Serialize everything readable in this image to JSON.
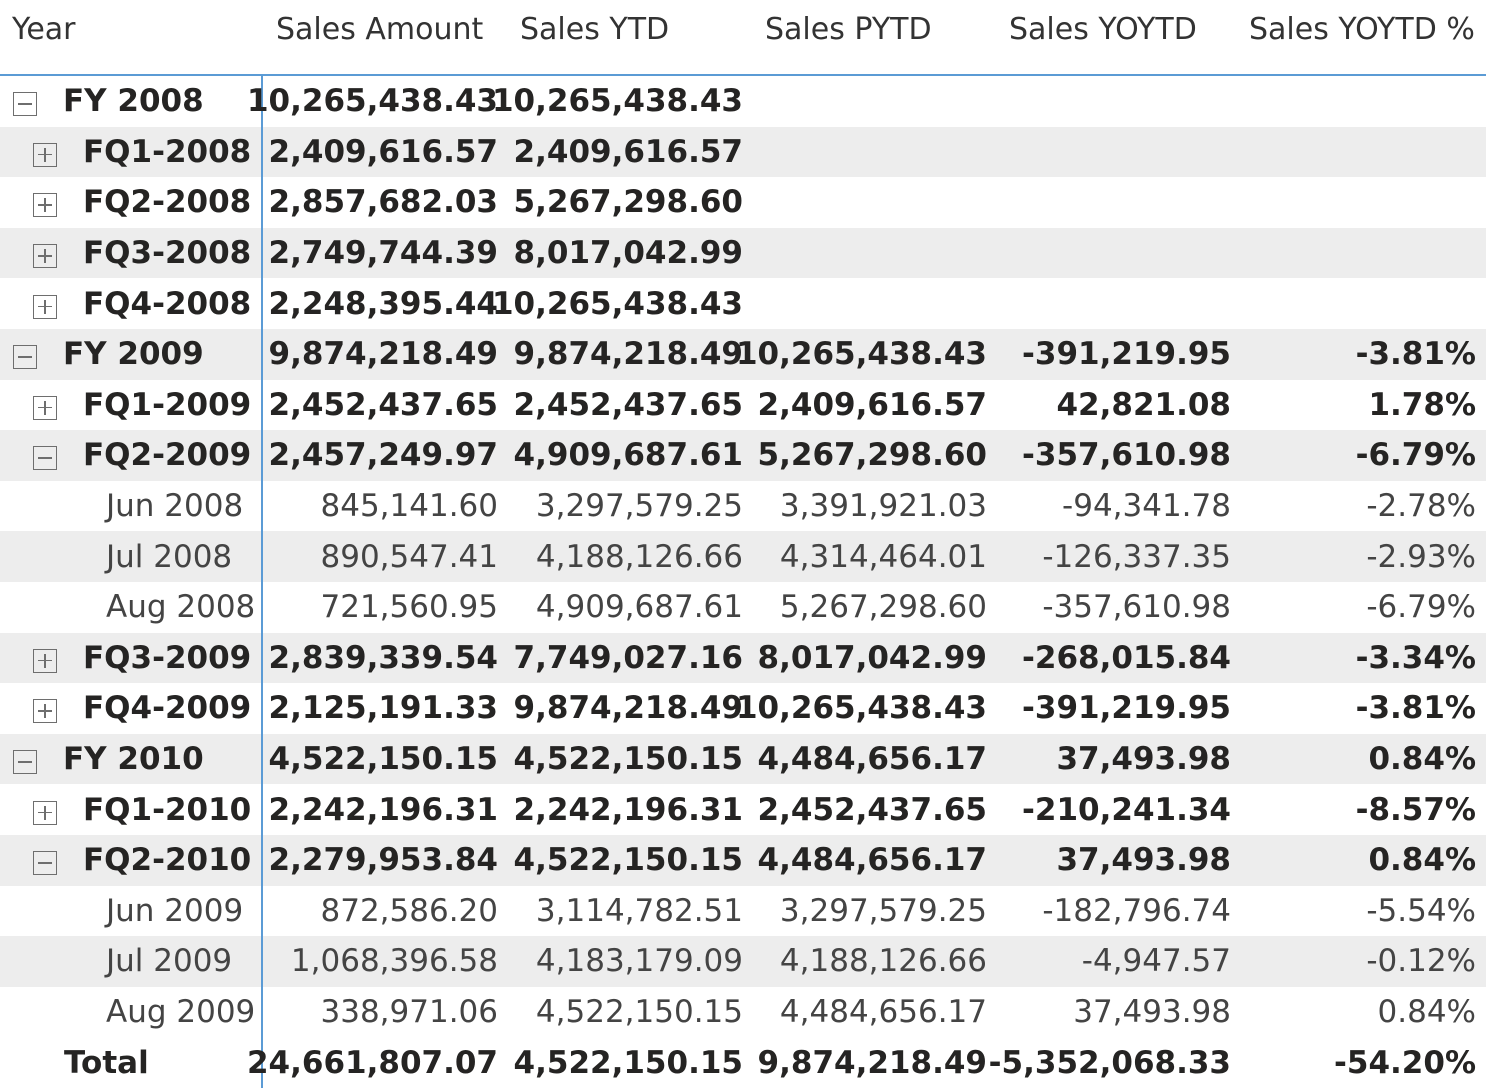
{
  "headers": {
    "year": "Year",
    "sales_amount": "Sales Amount",
    "sales_ytd": "Sales YTD",
    "sales_pytd": "Sales PYTD",
    "sales_yoytd": "Sales YOYTD",
    "sales_yoytd_pct": "Sales YOYTD %"
  },
  "rows": [
    {
      "label": "FY 2008",
      "level": 0,
      "toggle": "collapse",
      "bold": true,
      "shade": false,
      "amount": "10,265,438.43",
      "ytd": "10,265,438.43",
      "pytd": "",
      "yoytd": "",
      "pct": ""
    },
    {
      "label": "FQ1-2008",
      "level": 1,
      "toggle": "expand",
      "bold": true,
      "shade": true,
      "amount": "2,409,616.57",
      "ytd": "2,409,616.57",
      "pytd": "",
      "yoytd": "",
      "pct": ""
    },
    {
      "label": "FQ2-2008",
      "level": 1,
      "toggle": "expand",
      "bold": true,
      "shade": false,
      "amount": "2,857,682.03",
      "ytd": "5,267,298.60",
      "pytd": "",
      "yoytd": "",
      "pct": ""
    },
    {
      "label": "FQ3-2008",
      "level": 1,
      "toggle": "expand",
      "bold": true,
      "shade": true,
      "amount": "2,749,744.39",
      "ytd": "8,017,042.99",
      "pytd": "",
      "yoytd": "",
      "pct": ""
    },
    {
      "label": "FQ4-2008",
      "level": 1,
      "toggle": "expand",
      "bold": true,
      "shade": false,
      "amount": "2,248,395.44",
      "ytd": "10,265,438.43",
      "pytd": "",
      "yoytd": "",
      "pct": ""
    },
    {
      "label": "FY 2009",
      "level": 0,
      "toggle": "collapse",
      "bold": true,
      "shade": true,
      "amount": "9,874,218.49",
      "ytd": "9,874,218.49",
      "pytd": "10,265,438.43",
      "yoytd": "-391,219.95",
      "pct": "-3.81%"
    },
    {
      "label": "FQ1-2009",
      "level": 1,
      "toggle": "expand",
      "bold": true,
      "shade": false,
      "amount": "2,452,437.65",
      "ytd": "2,452,437.65",
      "pytd": "2,409,616.57",
      "yoytd": "42,821.08",
      "pct": "1.78%"
    },
    {
      "label": "FQ2-2009",
      "level": 1,
      "toggle": "collapse",
      "bold": true,
      "shade": true,
      "amount": "2,457,249.97",
      "ytd": "4,909,687.61",
      "pytd": "5,267,298.60",
      "yoytd": "-357,610.98",
      "pct": "-6.79%"
    },
    {
      "label": "Jun 2008",
      "level": 2,
      "toggle": "none",
      "bold": false,
      "shade": false,
      "amount": "845,141.60",
      "ytd": "3,297,579.25",
      "pytd": "3,391,921.03",
      "yoytd": "-94,341.78",
      "pct": "-2.78%"
    },
    {
      "label": "Jul 2008",
      "level": 2,
      "toggle": "none",
      "bold": false,
      "shade": true,
      "amount": "890,547.41",
      "ytd": "4,188,126.66",
      "pytd": "4,314,464.01",
      "yoytd": "-126,337.35",
      "pct": "-2.93%"
    },
    {
      "label": "Aug 2008",
      "level": 2,
      "toggle": "none",
      "bold": false,
      "shade": false,
      "amount": "721,560.95",
      "ytd": "4,909,687.61",
      "pytd": "5,267,298.60",
      "yoytd": "-357,610.98",
      "pct": "-6.79%"
    },
    {
      "label": "FQ3-2009",
      "level": 1,
      "toggle": "expand",
      "bold": true,
      "shade": true,
      "amount": "2,839,339.54",
      "ytd": "7,749,027.16",
      "pytd": "8,017,042.99",
      "yoytd": "-268,015.84",
      "pct": "-3.34%"
    },
    {
      "label": "FQ4-2009",
      "level": 1,
      "toggle": "expand",
      "bold": true,
      "shade": false,
      "amount": "2,125,191.33",
      "ytd": "9,874,218.49",
      "pytd": "10,265,438.43",
      "yoytd": "-391,219.95",
      "pct": "-3.81%"
    },
    {
      "label": "FY 2010",
      "level": 0,
      "toggle": "collapse",
      "bold": true,
      "shade": true,
      "amount": "4,522,150.15",
      "ytd": "4,522,150.15",
      "pytd": "4,484,656.17",
      "yoytd": "37,493.98",
      "pct": "0.84%"
    },
    {
      "label": "FQ1-2010",
      "level": 1,
      "toggle": "expand",
      "bold": true,
      "shade": false,
      "amount": "2,242,196.31",
      "ytd": "2,242,196.31",
      "pytd": "2,452,437.65",
      "yoytd": "-210,241.34",
      "pct": "-8.57%"
    },
    {
      "label": "FQ2-2010",
      "level": 1,
      "toggle": "collapse",
      "bold": true,
      "shade": true,
      "amount": "2,279,953.84",
      "ytd": "4,522,150.15",
      "pytd": "4,484,656.17",
      "yoytd": "37,493.98",
      "pct": "0.84%"
    },
    {
      "label": "Jun 2009",
      "level": 2,
      "toggle": "none",
      "bold": false,
      "shade": false,
      "amount": "872,586.20",
      "ytd": "3,114,782.51",
      "pytd": "3,297,579.25",
      "yoytd": "-182,796.74",
      "pct": "-5.54%"
    },
    {
      "label": "Jul 2009",
      "level": 2,
      "toggle": "none",
      "bold": false,
      "shade": true,
      "amount": "1,068,396.58",
      "ytd": "4,183,179.09",
      "pytd": "4,188,126.66",
      "yoytd": "-4,947.57",
      "pct": "-0.12%"
    },
    {
      "label": "Aug 2009",
      "level": 2,
      "toggle": "none",
      "bold": false,
      "shade": false,
      "amount": "338,971.06",
      "ytd": "4,522,150.15",
      "pytd": "4,484,656.17",
      "yoytd": "37,493.98",
      "pct": "0.84%"
    },
    {
      "label": "Total",
      "level": "total",
      "toggle": "none",
      "bold": true,
      "shade": false,
      "amount": "24,661,807.07",
      "ytd": "4,522,150.15",
      "pytd": "9,874,218.49",
      "yoytd": "-5,352,068.33",
      "pct": "-54.20%"
    }
  ],
  "colors": {
    "accent_line": "#5b9bd5",
    "row_shade": "#ededed",
    "text": "#252423"
  }
}
